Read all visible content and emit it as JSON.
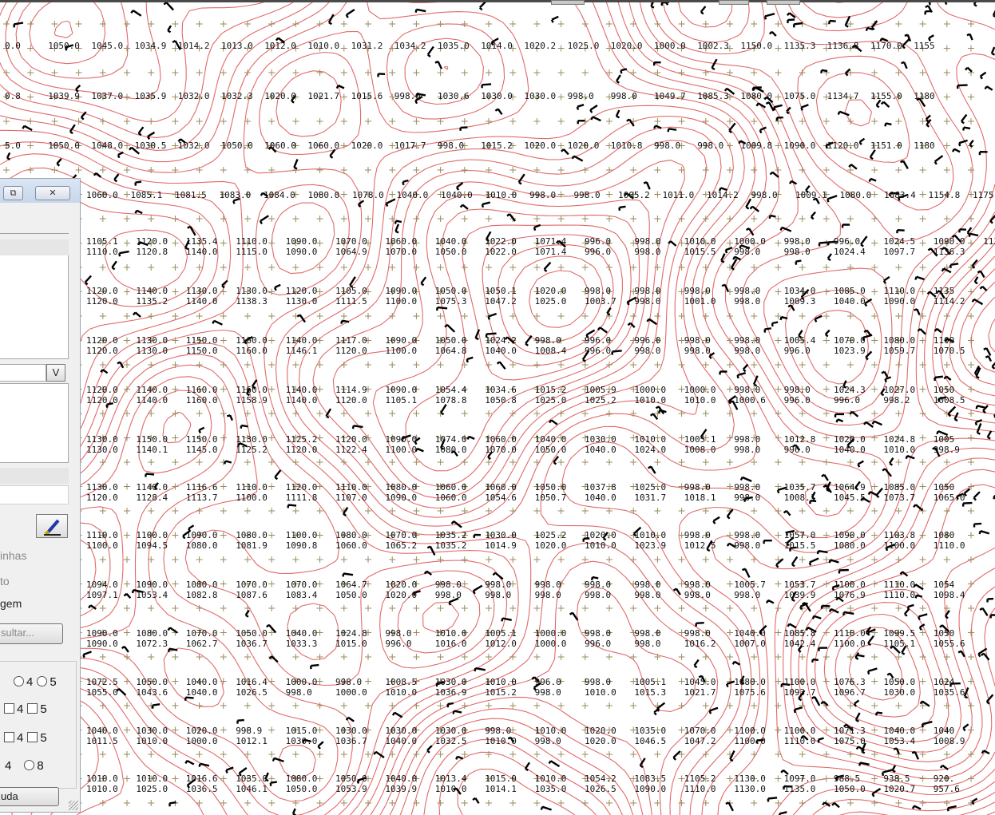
{
  "map": {
    "rows": [
      [
        "0.0",
        "1050.0",
        "1045.0",
        "1034.9",
        "1014.2",
        "1013.0",
        "1012.0",
        "1010.0",
        "1031.2",
        "1034.2",
        "1035.0",
        "1014.0",
        "1020.2",
        "1025.0",
        "1020.0",
        "1000.0",
        "1002.3",
        "1150.0",
        "1135.3",
        "1136.8",
        "1170.0",
        "1155"
      ],
      [
        "0.8",
        "1039.9",
        "1037.0",
        "1035.9",
        "1032.0",
        "1032.3",
        "1020.0",
        "1021.7",
        "1015.6",
        "998.0",
        "1030.6",
        "1030.0",
        "1030.0",
        "998.0",
        "998.0",
        "1049.7",
        "1085.3",
        "1080.0",
        "1075.0",
        "1134.7",
        "1155.0",
        "1180"
      ],
      [
        "5.0",
        "1050.0",
        "1048.0",
        "1030.5",
        "1032.0",
        "1050.0",
        "1060.0",
        "1060.0",
        "1020.0",
        "1017.7",
        "998.0",
        "1015.2",
        "1020.0",
        "1020.0",
        "1010.8",
        "998.0",
        "998.0",
        "1009.8",
        "1090.0",
        "1120.0",
        "1151.0",
        "1180"
      ],
      [
        "1060.0",
        "1085.1",
        "1081.5",
        "1083.0",
        "1084.0",
        "1080.0",
        "1078.0",
        "1040.0",
        "1040.0",
        "1010.0",
        "998.0",
        "998.0",
        "1005.2",
        "1011.0",
        "1014.2",
        "998.0",
        "1009.1",
        "1080.0",
        "1083.4",
        "1154.8",
        "1175"
      ],
      [
        "1105.1",
        "1120.0",
        "1135.4",
        "1110.0",
        "1090.0",
        "1070.0",
        "1060.0",
        "1040.0",
        "1022.0",
        "1071.4",
        "996.0",
        "998.0",
        "1010.0",
        "1000.0",
        "998.0",
        "996.0",
        "1024.5",
        "1090.0",
        "1134.6",
        "1155"
      ],
      [
        "1120.0",
        "1140.0",
        "1130.0",
        "1130.0",
        "1120.0",
        "1105.0",
        "1090.0",
        "1050.0",
        "1050.1",
        "1020.0",
        "998.0",
        "998.0",
        "998.0",
        "998.0",
        "1034.0",
        "1085.0",
        "1110.0",
        "1135"
      ],
      [
        "1120.0",
        "1130.0",
        "1150.0",
        "1160.0",
        "1140.0",
        "1117.0",
        "1090.0",
        "1050.0",
        "1024.2",
        "998.0",
        "996.0",
        "996.0",
        "998.0",
        "998.0",
        "1005.4",
        "1070.0",
        "1080.0",
        "1100"
      ],
      [
        "1120.0",
        "1140.0",
        "1160.0",
        "1160.0",
        "1140.0",
        "1114.9",
        "1090.0",
        "1054.4",
        "1034.6",
        "1015.2",
        "1005.9",
        "1000.0",
        "1000.0",
        "998.0",
        "998.0",
        "1024.3",
        "1027.0",
        "1050"
      ],
      [
        "1130.0",
        "1150.0",
        "1150.0",
        "1130.0",
        "1125.2",
        "1120.0",
        "1090.0",
        "1074.0",
        "1060.0",
        "1040.0",
        "1030.0",
        "1010.0",
        "1005.1",
        "998.0",
        "1012.8",
        "1020.0",
        "1024.8",
        "1005"
      ],
      [
        "1130.0",
        "1140.0",
        "1116.6",
        "1110.0",
        "1120.0",
        "1110.0",
        "1080.0",
        "1060.0",
        "1060.0",
        "1050.0",
        "1037.8",
        "1025.0",
        "998.0",
        "998.0",
        "1035.7",
        "1064.9",
        "1085.0",
        "1050"
      ],
      [
        "1110.0",
        "1100.0",
        "1090.0",
        "1080.0",
        "1100.0",
        "1080.0",
        "1070.0",
        "1035.2",
        "1030.0",
        "1025.2",
        "1020.0",
        "1010.0",
        "998.0",
        "998.0",
        "1057.0",
        "1090.0",
        "1103.8",
        "1080"
      ],
      [
        "1094.0",
        "1090.0",
        "1080.0",
        "1070.0",
        "1070.0",
        "1064.7",
        "1020.0",
        "998.0",
        "998.0",
        "998.0",
        "998.0",
        "998.0",
        "998.0",
        "1005.7",
        "1053.7",
        "1100.0",
        "1110.0",
        "1054"
      ],
      [
        "1090.0",
        "1080.0",
        "1070.0",
        "1050.0",
        "1040.0",
        "1024.8",
        "998.0",
        "1010.0",
        "1005.1",
        "1000.0",
        "998.0",
        "998.0",
        "998.0",
        "1040.0",
        "1085.8",
        "1110.0",
        "1099.5",
        "1050"
      ],
      [
        "1072.5",
        "1050.0",
        "1040.0",
        "1016.4",
        "1000.0",
        "998.0",
        "1008.5",
        "1030.0",
        "1010.0",
        "996.0",
        "998.0",
        "1005.1",
        "1045.0",
        "1080.0",
        "1100.0",
        "1076.3",
        "1050.0",
        "1024"
      ],
      [
        "1040.0",
        "1030.0",
        "1020.0",
        "998.9",
        "1015.0",
        "1030.0",
        "1030.0",
        "1030.0",
        "998.0",
        "1010.0",
        "1020.0",
        "1035.0",
        "1070.0",
        "1100.0",
        "1100.0",
        "1071.3",
        "1040.0",
        "1040"
      ],
      [
        "1010.0",
        "1010.0",
        "1016.6",
        "1035.0",
        "1080.0",
        "1050.0",
        "1040.0",
        "1013.4",
        "1015.0",
        "1010.0",
        "1054.2",
        "1083.5",
        "1105.2",
        "1130.0",
        "1097.0",
        "988.5",
        "938.5",
        "920."
      ]
    ],
    "rows_b": [
      [
        "1110.0",
        "1120.8",
        "1140.0",
        "1115.0",
        "1090.0",
        "1064.9",
        "1070.0",
        "1050.0",
        "1022.0",
        "1071.4",
        "996.0",
        "998.0",
        "1015.5",
        "998.0",
        "998.0",
        "1024.4",
        "1097.7",
        "1136.3"
      ],
      [
        "1120.0",
        "1135.2",
        "1140.0",
        "1138.3",
        "1130.0",
        "1111.5",
        "1100.0",
        "1075.3",
        "1047.2",
        "1025.0",
        "1003.7",
        "998.0",
        "1001.0",
        "998.0",
        "1009.3",
        "1040.0",
        "1090.0",
        "1114.2"
      ],
      [
        "1120.0",
        "1130.0",
        "1150.0",
        "1160.0",
        "1146.1",
        "1120.0",
        "1100.0",
        "1064.8",
        "1040.0",
        "1008.4",
        "996.0",
        "998.0",
        "998.0",
        "998.0",
        "996.0",
        "1023.9",
        "1059.7",
        "1070.5"
      ],
      [
        "1120.0",
        "1140.0",
        "1160.0",
        "1158.9",
        "1140.0",
        "1120.0",
        "1105.1",
        "1078.8",
        "1050.8",
        "1025.0",
        "1025.2",
        "1010.0",
        "1010.0",
        "1000.6",
        "996.0",
        "996.0",
        "998.2",
        "1008.5"
      ],
      [
        "1130.0",
        "1140.1",
        "1145.0",
        "1125.2",
        "1120.0",
        "1122.4",
        "1100.0",
        "1080.0",
        "1070.0",
        "1050.0",
        "1040.0",
        "1024.0",
        "1008.0",
        "998.0",
        "996.0",
        "1040.0",
        "1010.0",
        "998.9"
      ],
      [
        "1120.0",
        "1128.4",
        "1113.7",
        "1100.0",
        "1111.8",
        "1107.0",
        "1090.0",
        "1060.0",
        "1054.6",
        "1050.7",
        "1040.0",
        "1031.7",
        "1018.1",
        "998.0",
        "1008.1",
        "1045.5",
        "1073.7",
        "1065.0"
      ],
      [
        "1100.0",
        "1094.5",
        "1080.0",
        "1081.9",
        "1090.8",
        "1060.0",
        "1065.2",
        "1035.2",
        "1014.9",
        "1020.0",
        "1010.0",
        "1023.9",
        "1012.5",
        "998.0",
        "1015.5",
        "1080.0",
        "1100.0",
        "1110.0"
      ],
      [
        "1097.1",
        "1053.4",
        "1082.8",
        "1087.6",
        "1083.4",
        "1050.0",
        "1020.0",
        "998.0",
        "998.0",
        "998.0",
        "998.0",
        "998.0",
        "998.0",
        "998.0",
        "1039.9",
        "1076.9",
        "1110.0",
        "1098.4"
      ],
      [
        "1090.0",
        "1072.3",
        "1062.7",
        "1036.7",
        "1033.3",
        "1015.0",
        "996.0",
        "1016.0",
        "1012.0",
        "1000.0",
        "996.0",
        "998.0",
        "1016.2",
        "1007.0",
        "1042.4",
        "1100.0",
        "1105.1",
        "1055.6"
      ],
      [
        "1055.0",
        "1043.6",
        "1040.0",
        "1026.5",
        "998.0",
        "1000.0",
        "1010.0",
        "1036.9",
        "1015.2",
        "998.0",
        "1010.0",
        "1015.3",
        "1021.7",
        "1075.6",
        "1093.7",
        "1096.7",
        "1030.0",
        "1035.6"
      ],
      [
        "1011.5",
        "1010.0",
        "1000.0",
        "1012.1",
        "1030.0",
        "1036.7",
        "1040.0",
        "1032.5",
        "1010.0",
        "998.0",
        "1020.0",
        "1046.5",
        "1047.2",
        "1100.0",
        "1110.0",
        "1075.0",
        "1053.4",
        "1008.9"
      ],
      [
        "1010.0",
        "1025.0",
        "1036.5",
        "1046.1",
        "1050.0",
        "1053.9",
        "1039.9",
        "1010.0",
        "1014.1",
        "1035.0",
        "1026.5",
        "1090.0",
        "1110.0",
        "1130.0",
        "1135.0",
        "1050.0",
        "1020.7",
        "957.6"
      ]
    ]
  },
  "dialog": {
    "restore_label": "⧉",
    "close_label": "✕",
    "v_button_label": "V",
    "option_1": "inhas",
    "option_2": "to",
    "option_3": "gem",
    "consult_button": "sultar...",
    "radio_row": "4",
    "radio_row_b": "5",
    "check_row_1": "4",
    "check_row_1b": "5",
    "check_row_2": "4",
    "check_row_2b": "5",
    "radio_row_2": "4",
    "radio_row_2b": "8",
    "help_button": "uda"
  },
  "colors": {
    "contour": "#e06a6a",
    "grid_cross": "#9a8a5a",
    "label": "#111111",
    "barb": "#000000",
    "dialog_bg": "#f0f0f0"
  }
}
